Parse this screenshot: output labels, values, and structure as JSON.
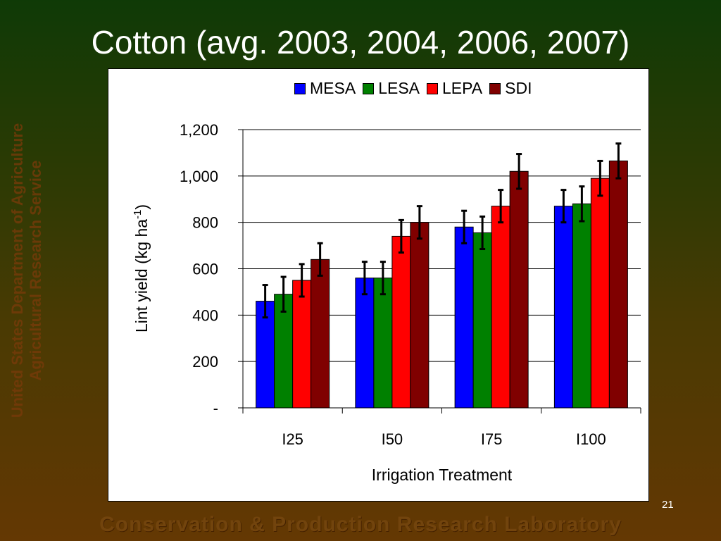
{
  "slide": {
    "title": "Cotton (avg. 2003, 2004, 2006, 2007)",
    "side_text_line1": "United States Department of Agriculture",
    "side_text_line2": "Agricultural Research Service",
    "footer": "Conservation & Production Research Laboratory",
    "page_number": "21"
  },
  "chart_data": {
    "type": "bar",
    "categories": [
      "I25",
      "I50",
      "I75",
      "I100"
    ],
    "series": [
      {
        "name": "MESA",
        "color": "#0000ff",
        "values": [
          460,
          560,
          780,
          870
        ],
        "error": [
          70,
          70,
          70,
          70
        ]
      },
      {
        "name": "LESA",
        "color": "#008000",
        "values": [
          490,
          560,
          755,
          880
        ],
        "error": [
          75,
          70,
          70,
          75
        ]
      },
      {
        "name": "LEPA",
        "color": "#ff0000",
        "values": [
          550,
          740,
          870,
          990
        ],
        "error": [
          70,
          70,
          70,
          75
        ]
      },
      {
        "name": "SDI",
        "color": "#800000",
        "values": [
          640,
          800,
          1020,
          1065
        ],
        "error": [
          70,
          70,
          75,
          75
        ]
      }
    ],
    "xlabel": "Irrigation Treatment",
    "ylabel": "Lint yield (kg ha-1)",
    "ylim": [
      0,
      1200
    ],
    "yticks": [
      0,
      200,
      400,
      600,
      800,
      1000,
      1200
    ],
    "ytick_labels": [
      "-",
      "200",
      "400",
      "600",
      "800",
      "1,000",
      "1,200"
    ],
    "grid": true,
    "legend_position": "top"
  }
}
